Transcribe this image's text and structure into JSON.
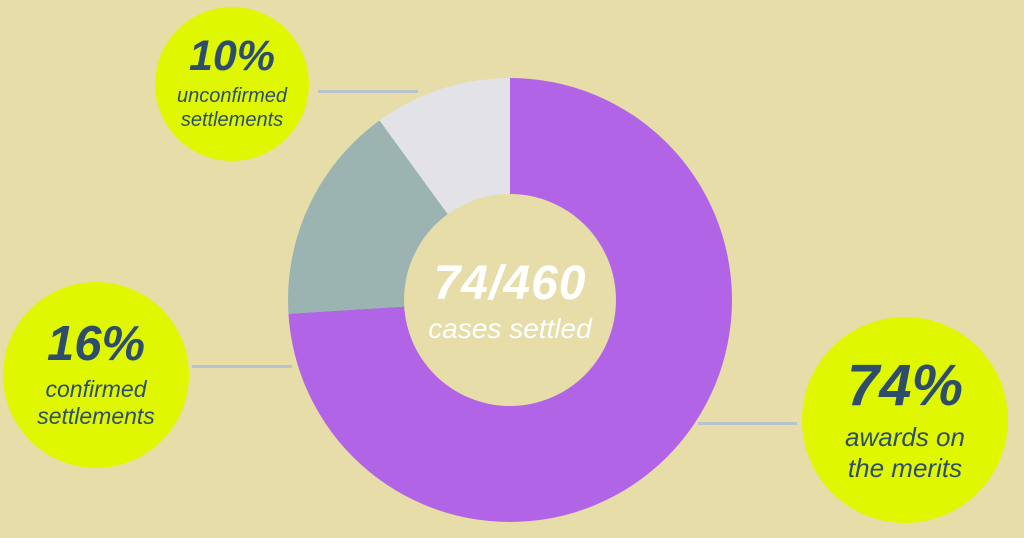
{
  "colors": {
    "background": "#e6dda8",
    "bubble": "#e0f702",
    "text_navy": "#2d4d6b",
    "center_text": "#ffffff",
    "connector": "#b7c3cd",
    "segment_awards": "#b164e6",
    "segment_confirmed": "#9cb4b1",
    "segment_unconfirmed": "#e3e2e6"
  },
  "chart_data": {
    "type": "pie",
    "variant": "donut",
    "title": "",
    "center_value": "74/460",
    "center_label": "cases settled",
    "start_angle_deg": 0,
    "direction": "clockwise",
    "legend_position": "callout-bubbles",
    "segments": [
      {
        "name": "awards on the merits",
        "value": 74,
        "unit": "%",
        "color": "#b164e6"
      },
      {
        "name": "confirmed settlements",
        "value": 16,
        "unit": "%",
        "color": "#9cb4b1"
      },
      {
        "name": "unconfirmed settlements",
        "value": 10,
        "unit": "%",
        "color": "#e3e2e6"
      }
    ]
  },
  "callouts": [
    {
      "id": "unconfirmed",
      "percent_label": "10%",
      "label": "unconfirmed\nsettlements"
    },
    {
      "id": "confirmed",
      "percent_label": "16%",
      "label": "confirmed\nsettlements"
    },
    {
      "id": "awards",
      "percent_label": "74%",
      "label": "awards on\nthe merits"
    }
  ]
}
